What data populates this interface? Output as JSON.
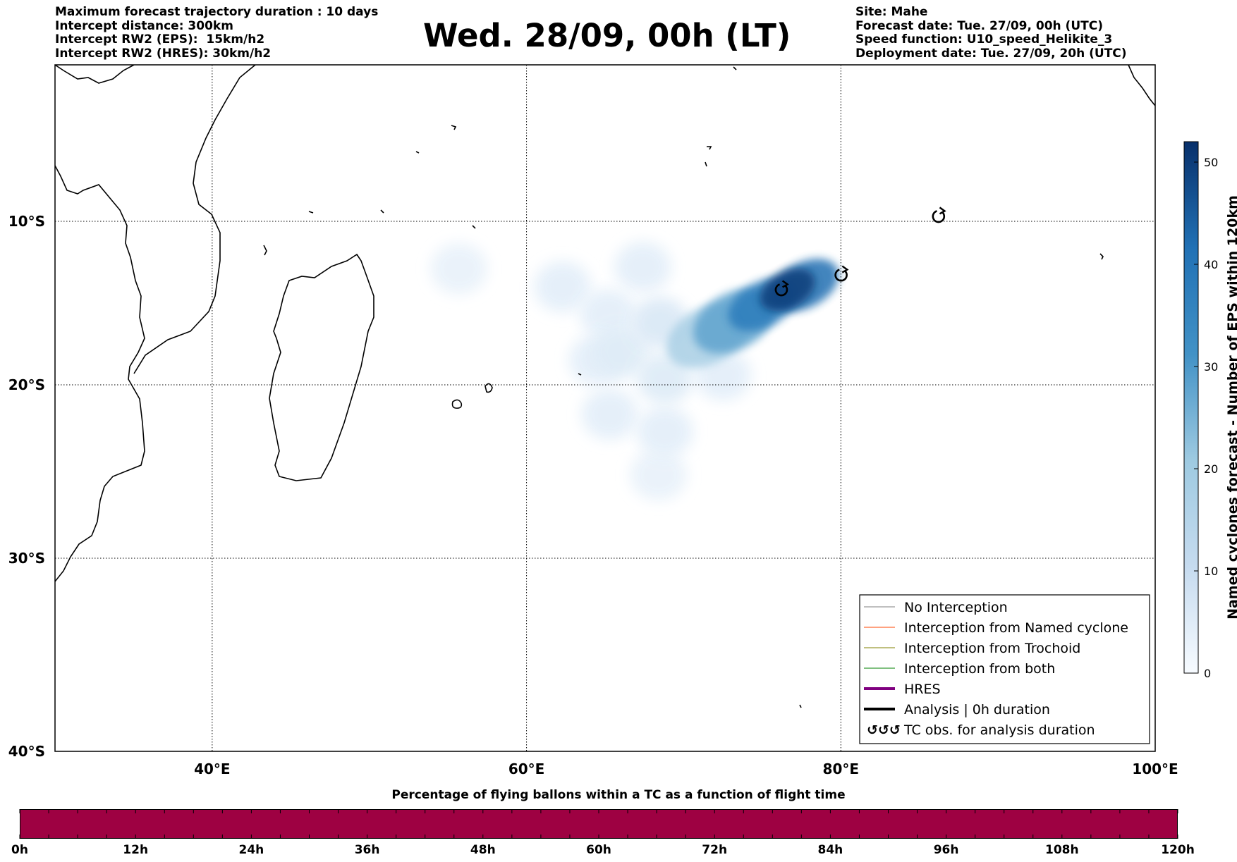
{
  "header_left": [
    "Maximum forecast trajectory duration : 10 days",
    "Intercept distance: 300km",
    "Intercept RW2 (EPS):  15km/h2",
    "Intercept RW2 (HRES): 30km/h2"
  ],
  "header_right": [
    "Site: Mahe",
    "Forecast date: Tue. 27/09, 00h (UTC)",
    "Speed function: U10_speed_Helikite_3",
    "Deployment date: Tue. 27/09, 20h (UTC)"
  ],
  "title": "Wed. 28/09, 00h (LT)",
  "map": {
    "lat_labels": [
      "10°S",
      "20°S",
      "30°S",
      "40°S"
    ],
    "lon_labels": [
      "40°E",
      "60°E",
      "80°E",
      "100°E"
    ],
    "lon_range": [
      30,
      100
    ],
    "lat_range": [
      -40,
      0
    ],
    "grid": true,
    "grid_style": "dotted",
    "gridline_lons": [
      40,
      60,
      80
    ],
    "gridline_lats": [
      -10,
      -20,
      -30
    ],
    "cyclone_symbols": [
      {
        "lon": 76.2,
        "lat": -14.2
      },
      {
        "lon": 80.0,
        "lat": -13.3
      },
      {
        "lon": 86.2,
        "lat": -9.7
      }
    ],
    "density_field": {
      "description_colormap": "Blues",
      "blobs": [
        {
          "lon": 55.7,
          "lat": -12.9,
          "value": 3
        },
        {
          "lon": 62.3,
          "lat": -14.0,
          "value": 4
        },
        {
          "lon": 67.4,
          "lat": -12.8,
          "value": 4
        },
        {
          "lon": 65.2,
          "lat": -15.7,
          "value": 4
        },
        {
          "lon": 68.5,
          "lat": -16.2,
          "value": 6
        },
        {
          "lon": 64.5,
          "lat": -18.5,
          "value": 4
        },
        {
          "lon": 66.0,
          "lat": -18.0,
          "value": 5
        },
        {
          "lon": 68.8,
          "lat": -19.6,
          "value": 5
        },
        {
          "lon": 72.5,
          "lat": -19.4,
          "value": 4
        },
        {
          "lon": 65.3,
          "lat": -21.7,
          "value": 4
        },
        {
          "lon": 68.8,
          "lat": -22.7,
          "value": 4
        },
        {
          "lon": 68.4,
          "lat": -25.2,
          "value": 3
        },
        {
          "lon": 71.5,
          "lat": -17.0,
          "value": 18
        },
        {
          "lon": 73.2,
          "lat": -16.1,
          "value": 28
        },
        {
          "lon": 75.0,
          "lat": -15.1,
          "value": 38
        },
        {
          "lon": 76.6,
          "lat": -14.2,
          "value": 50
        },
        {
          "lon": 77.7,
          "lat": -13.9,
          "value": 42
        }
      ]
    }
  },
  "colorbar": {
    "label": "Named cyclones forecast - Number of EPS within 120km",
    "ticks": [
      "0",
      "10",
      "20",
      "30",
      "40",
      "50"
    ],
    "min": 0,
    "max": 52,
    "colormap": "Blues"
  },
  "legend": {
    "items": [
      {
        "label": "No Interception",
        "color": "#808080",
        "width": 1
      },
      {
        "label": "Interception from Named cyclone",
        "color": "#ff4500",
        "width": 1
      },
      {
        "label": "Interception from Trochoid",
        "color": "#808000",
        "width": 1
      },
      {
        "label": "Interception from both",
        "color": "#008000",
        "width": 1
      },
      {
        "label": "HRES",
        "color": "#800080",
        "width": 4
      },
      {
        "label": "Analysis | 0h duration",
        "color": "#000000",
        "width": 4
      },
      {
        "label": "TC obs. for analysis duration",
        "color": "#000000",
        "symbol": "ℭℭℭ"
      }
    ]
  },
  "bottom_bar": {
    "title": "Percentage of flying ballons within a TC as a function of flight time",
    "tick_labels": [
      "0h",
      "12h",
      "24h",
      "36h",
      "48h",
      "60h",
      "72h",
      "84h",
      "96h",
      "108h",
      "120h"
    ],
    "bar_color": "#9e0142",
    "fill_fraction": 1.0
  }
}
